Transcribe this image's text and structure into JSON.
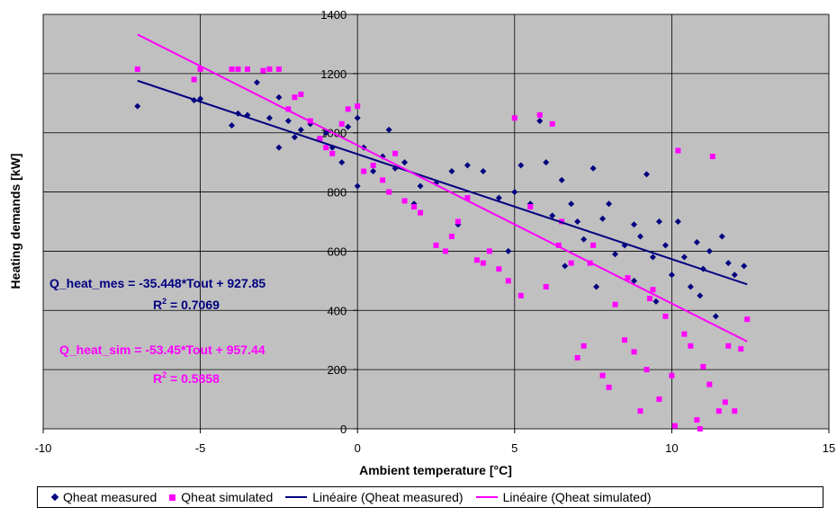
{
  "chart_data": {
    "type": "scatter",
    "xlabel": "Ambient temperature [°C]",
    "ylabel": "Heating demands [kW]",
    "xlim": [
      -10,
      15
    ],
    "ylim": [
      0,
      1400
    ],
    "xticks": [
      -10,
      -5,
      0,
      5,
      10,
      15
    ],
    "yticks": [
      0,
      200,
      400,
      600,
      800,
      1000,
      1200,
      1400
    ],
    "grid": true,
    "plot_background": "#c0c0c0",
    "legend_position": "bottom",
    "series": [
      {
        "name": "Qheat measured",
        "kind": "points",
        "marker": "diamond",
        "color": "#000080",
        "points": [
          [
            -7,
            1090
          ],
          [
            -5.2,
            1110
          ],
          [
            -5,
            1115
          ],
          [
            -4,
            1025
          ],
          [
            -3.8,
            1065
          ],
          [
            -3.5,
            1060
          ],
          [
            -3.2,
            1170
          ],
          [
            -2.8,
            1050
          ],
          [
            -2.5,
            950
          ],
          [
            -2.5,
            1120
          ],
          [
            -2.2,
            1040
          ],
          [
            -2,
            985
          ],
          [
            -1.8,
            1010
          ],
          [
            -1.5,
            1030
          ],
          [
            -1.2,
            980
          ],
          [
            -1,
            1000
          ],
          [
            -0.8,
            950
          ],
          [
            -0.5,
            900
          ],
          [
            -0.3,
            1020
          ],
          [
            0,
            1050
          ],
          [
            0,
            820
          ],
          [
            0.2,
            950
          ],
          [
            0.5,
            870
          ],
          [
            0.8,
            920
          ],
          [
            1,
            1010
          ],
          [
            1.2,
            880
          ],
          [
            1.5,
            900
          ],
          [
            2,
            820
          ],
          [
            2.5,
            830
          ],
          [
            3,
            870
          ],
          [
            3.5,
            890
          ],
          [
            4,
            870
          ],
          [
            4.5,
            780
          ],
          [
            5,
            800
          ],
          [
            5.2,
            890
          ],
          [
            5.5,
            760
          ],
          [
            5.8,
            1040
          ],
          [
            6,
            900
          ],
          [
            6.2,
            720
          ],
          [
            6.5,
            840
          ],
          [
            6.8,
            760
          ],
          [
            7,
            700
          ],
          [
            7.2,
            640
          ],
          [
            7.5,
            880
          ],
          [
            7.8,
            710
          ],
          [
            8,
            760
          ],
          [
            8.2,
            590
          ],
          [
            8.5,
            620
          ],
          [
            8.8,
            690
          ],
          [
            9,
            650
          ],
          [
            9.2,
            860
          ],
          [
            9.4,
            580
          ],
          [
            9.6,
            700
          ],
          [
            9.8,
            620
          ],
          [
            10,
            520
          ],
          [
            10.2,
            700
          ],
          [
            10.4,
            580
          ],
          [
            10.6,
            480
          ],
          [
            10.8,
            630
          ],
          [
            11,
            540
          ],
          [
            11.2,
            600
          ],
          [
            11.4,
            380
          ],
          [
            11.6,
            650
          ],
          [
            11.8,
            560
          ],
          [
            12,
            520
          ],
          [
            12.3,
            550
          ],
          [
            10.9,
            450
          ],
          [
            9.5,
            430
          ],
          [
            8.8,
            500
          ],
          [
            7.6,
            480
          ],
          [
            6.6,
            550
          ],
          [
            4.8,
            600
          ],
          [
            3.2,
            690
          ],
          [
            1.8,
            760
          ]
        ]
      },
      {
        "name": "Qheat simulated",
        "kind": "points",
        "marker": "square",
        "color": "#ff00ff",
        "points": [
          [
            -7,
            1215
          ],
          [
            -5.2,
            1180
          ],
          [
            -5,
            1215
          ],
          [
            -4,
            1215
          ],
          [
            -3.8,
            1215
          ],
          [
            -3.5,
            1215
          ],
          [
            -3,
            1210
          ],
          [
            -2.8,
            1215
          ],
          [
            -2.5,
            1215
          ],
          [
            -2.2,
            1080
          ],
          [
            -2,
            1120
          ],
          [
            -1.8,
            1130
          ],
          [
            -1.5,
            1040
          ],
          [
            -1.2,
            980
          ],
          [
            -1,
            950
          ],
          [
            -0.8,
            930
          ],
          [
            -0.5,
            1030
          ],
          [
            -0.3,
            1080
          ],
          [
            0,
            1090
          ],
          [
            0.2,
            870
          ],
          [
            0.5,
            890
          ],
          [
            0.8,
            840
          ],
          [
            1,
            800
          ],
          [
            1.2,
            930
          ],
          [
            1.5,
            770
          ],
          [
            1.8,
            750
          ],
          [
            2,
            730
          ],
          [
            2.5,
            620
          ],
          [
            2.8,
            600
          ],
          [
            3,
            650
          ],
          [
            3.2,
            700
          ],
          [
            3.5,
            780
          ],
          [
            3.8,
            570
          ],
          [
            4,
            560
          ],
          [
            4.2,
            600
          ],
          [
            4.5,
            540
          ],
          [
            4.8,
            500
          ],
          [
            5,
            1050
          ],
          [
            5.2,
            450
          ],
          [
            5.5,
            750
          ],
          [
            5.8,
            1060
          ],
          [
            6,
            480
          ],
          [
            6.2,
            1030
          ],
          [
            6.5,
            700
          ],
          [
            6.8,
            560
          ],
          [
            7,
            240
          ],
          [
            7.2,
            280
          ],
          [
            7.5,
            620
          ],
          [
            7.8,
            180
          ],
          [
            8,
            140
          ],
          [
            8.2,
            420
          ],
          [
            8.5,
            300
          ],
          [
            8.8,
            260
          ],
          [
            9,
            60
          ],
          [
            9.2,
            200
          ],
          [
            9.4,
            470
          ],
          [
            9.6,
            100
          ],
          [
            9.8,
            380
          ],
          [
            10,
            180
          ],
          [
            10.1,
            10
          ],
          [
            10.2,
            940
          ],
          [
            10.4,
            320
          ],
          [
            10.6,
            280
          ],
          [
            10.8,
            30
          ],
          [
            11,
            210
          ],
          [
            11.2,
            150
          ],
          [
            11.3,
            920
          ],
          [
            11.5,
            60
          ],
          [
            11.7,
            90
          ],
          [
            12,
            60
          ],
          [
            12.2,
            270
          ],
          [
            12.4,
            370
          ],
          [
            11.8,
            280
          ],
          [
            10.9,
            0
          ],
          [
            9.3,
            440
          ],
          [
            8.6,
            510
          ],
          [
            7.4,
            560
          ],
          [
            6.4,
            620
          ]
        ]
      },
      {
        "name": "Linéaire (Qheat measured)",
        "kind": "trendline",
        "color": "#000080",
        "x": [
          -7,
          12.4
        ],
        "y": [
          1176,
          488
        ]
      },
      {
        "name": "Linéaire (Qheat simulated)",
        "kind": "trendline",
        "color": "#ff00ff",
        "x": [
          -7,
          12.4
        ],
        "y": [
          1332,
          295
        ]
      }
    ],
    "annotations": [
      {
        "name": "eq_measured",
        "text": "Q_heat_mes = -35.448*Tout + 927.85",
        "color": "#000080"
      },
      {
        "name": "r2_measured",
        "prefix": "R",
        "sup": "2",
        "suffix": " = 0.7069",
        "color": "#000080"
      },
      {
        "name": "eq_simulated",
        "text": "Q_heat_sim = -53.45*Tout + 957.44",
        "color": "#ff00ff"
      },
      {
        "name": "r2_simulated",
        "prefix": "R",
        "sup": "2",
        "suffix": " = 0.5858",
        "color": "#ff00ff"
      }
    ]
  },
  "legend": {
    "measured": "Qheat measured",
    "simulated": "Qheat simulated",
    "lin_measured": "Linéaire (Qheat measured)",
    "lin_simulated": "Linéaire (Qheat simulated)"
  }
}
